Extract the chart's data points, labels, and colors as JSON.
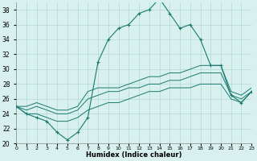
{
  "xlabel": "Humidex (Indice chaleur)",
  "xlim": [
    0,
    23
  ],
  "ylim": [
    20,
    39
  ],
  "yticks": [
    20,
    22,
    24,
    26,
    28,
    30,
    32,
    34,
    36,
    38
  ],
  "xtick_labels": [
    "0",
    "1",
    "2",
    "3",
    "4",
    "5",
    "6",
    "7",
    "8",
    "9",
    "10",
    "11",
    "12",
    "13",
    "14",
    "15",
    "16",
    "17",
    "18",
    "19",
    "20",
    "21",
    "22",
    "23"
  ],
  "bg_color": "#d8f0ee",
  "grid_color": "#b0d8d4",
  "line_color": "#1a7a6e",
  "series": {
    "main": [
      25,
      24,
      23.5,
      23,
      21.5,
      20.5,
      21.5,
      23.5,
      31,
      34,
      35.5,
      36,
      37.5,
      38,
      39.5,
      37.5,
      35.5,
      36,
      34,
      30.5,
      30.5,
      26.5,
      25.5,
      27
    ],
    "upper": [
      25,
      25,
      25.5,
      25,
      24.5,
      24.5,
      25,
      27,
      27.5,
      27.5,
      27.5,
      28,
      28.5,
      29,
      29,
      29.5,
      29.5,
      30,
      30.5,
      30.5,
      30.5,
      27,
      26.5,
      27.5
    ],
    "middle": [
      25,
      24.5,
      25,
      24.5,
      24,
      24,
      24.5,
      26,
      26.5,
      27,
      27,
      27.5,
      27.5,
      28,
      28,
      28.5,
      28.5,
      29,
      29.5,
      29.5,
      29.5,
      26.5,
      26,
      27
    ],
    "lower": [
      25,
      24,
      24,
      23.5,
      23,
      23,
      23.5,
      24.5,
      25,
      25.5,
      25.5,
      26,
      26.5,
      27,
      27,
      27.5,
      27.5,
      27.5,
      28,
      28,
      28,
      26,
      25.5,
      27
    ]
  }
}
